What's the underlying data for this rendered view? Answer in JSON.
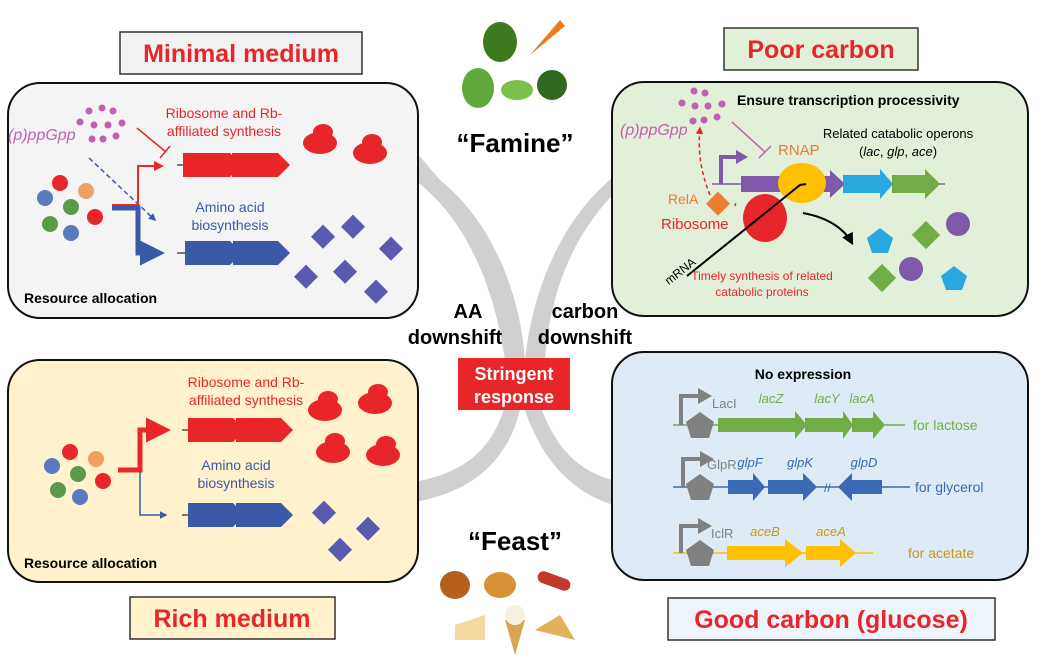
{
  "titles": {
    "minimal": "Minimal medium",
    "poor": "Poor carbon",
    "rich": "Rich medium",
    "good": "Good carbon (glucose)"
  },
  "center": {
    "famine": "“Famine”",
    "feast": "“Feast”",
    "aa1": "AA",
    "aa2": "downshift",
    "c1": "carbon",
    "c2": "downshift",
    "sr1": "Stringent",
    "sr2": "response"
  },
  "tl": {
    "ppgpp": "(p)ppGpp",
    "rb1": "Ribosome and Rb-",
    "rb2": "affiliated synthesis",
    "aa1": "Amino acid",
    "aa2": "biosynthesis",
    "footer": "Resource allocation"
  },
  "bl": {
    "rb1": "Ribosome and Rb-",
    "rb2": "affiliated synthesis",
    "aa1": "Amino acid",
    "aa2": "biosynthesis",
    "footer": "Resource allocation"
  },
  "tr": {
    "heading": "Ensure transcription processivity",
    "ppgpp": "(p)ppGpp",
    "rnap": "RNAP",
    "operons": "Related catabolic operons",
    "ops_lac": "lac",
    "ops_glp": "glp",
    "ops_ace": "ace",
    "rela": "RelA",
    "ribosome": "Ribosome",
    "mrna": "mRNA",
    "timely1": "Timely synthesis of related",
    "timely2": "catabolic proteins"
  },
  "br": {
    "heading": "No expression",
    "rows": [
      {
        "repressor": "LacI",
        "genes": [
          "lacZ",
          "lacY",
          "lacA"
        ],
        "label": "for lactose",
        "color": "#70ad47"
      },
      {
        "repressor": "GlpR",
        "genes": [
          "glpF",
          "glpK",
          "glpD"
        ],
        "label": "for glycerol",
        "color": "#3a6ab4"
      },
      {
        "repressor": "IclR",
        "genes": [
          "aceB",
          "aceA"
        ],
        "label": "for acetate",
        "color": "#ffc000"
      }
    ]
  },
  "colors": {
    "red": "#e8262a",
    "blue": "#3a5aa8",
    "magenta": "#c060b0",
    "orange": "#ed7d31"
  }
}
